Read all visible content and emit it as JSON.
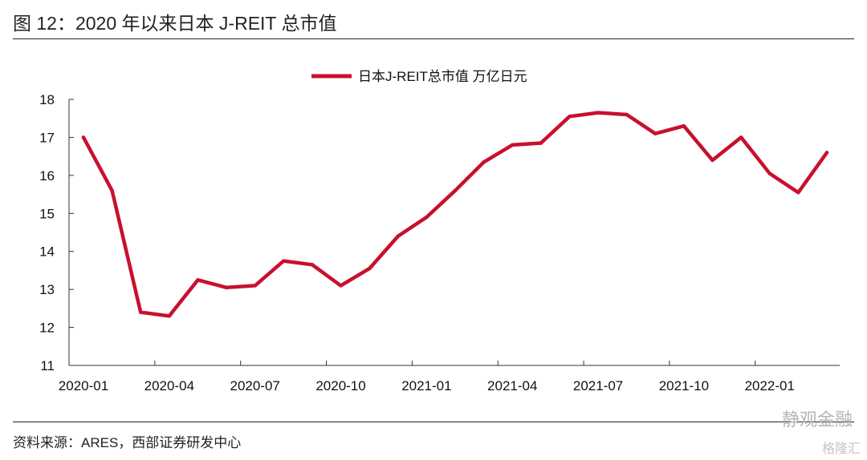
{
  "header": {
    "title": "图 12：2020 年以来日本 J-REIT 总市值"
  },
  "footer": {
    "source": "资料来源：ARES，西部证券研发中心",
    "watermark": "静观金融",
    "watermark2": "格隆汇"
  },
  "colors": {
    "series": "#c8102e",
    "axis": "#333333"
  },
  "chart_data": {
    "type": "line",
    "title": "",
    "xlabel": "",
    "ylabel": "",
    "ylim": [
      11,
      18
    ],
    "yticks": [
      "11",
      "12",
      "13",
      "14",
      "15",
      "16",
      "17",
      "18"
    ],
    "grid": false,
    "legend_position": "top-center",
    "x": [
      "2020-01",
      "2020-02",
      "2020-03",
      "2020-04",
      "2020-05",
      "2020-06",
      "2020-07",
      "2020-08",
      "2020-09",
      "2020-10",
      "2020-11",
      "2020-12",
      "2021-01",
      "2021-02",
      "2021-03",
      "2021-04",
      "2021-05",
      "2021-06",
      "2021-07",
      "2021-08",
      "2021-09",
      "2021-10",
      "2021-11",
      "2021-12",
      "2022-01",
      "2022-02",
      "2022-03"
    ],
    "xtick_labels": [
      "2020-01",
      "2020-04",
      "2020-07",
      "2020-10",
      "2021-01",
      "2021-04",
      "2021-07",
      "2021-10",
      "2022-01"
    ],
    "series": [
      {
        "name": "日本J-REIT总市值 万亿日元",
        "values": [
          17.0,
          15.6,
          12.4,
          12.3,
          13.25,
          13.05,
          13.1,
          13.75,
          13.65,
          13.1,
          13.55,
          14.4,
          14.9,
          15.6,
          16.35,
          16.8,
          16.85,
          17.55,
          17.65,
          17.6,
          17.1,
          17.3,
          16.4,
          17.0,
          16.05,
          15.55,
          16.6
        ]
      }
    ]
  }
}
